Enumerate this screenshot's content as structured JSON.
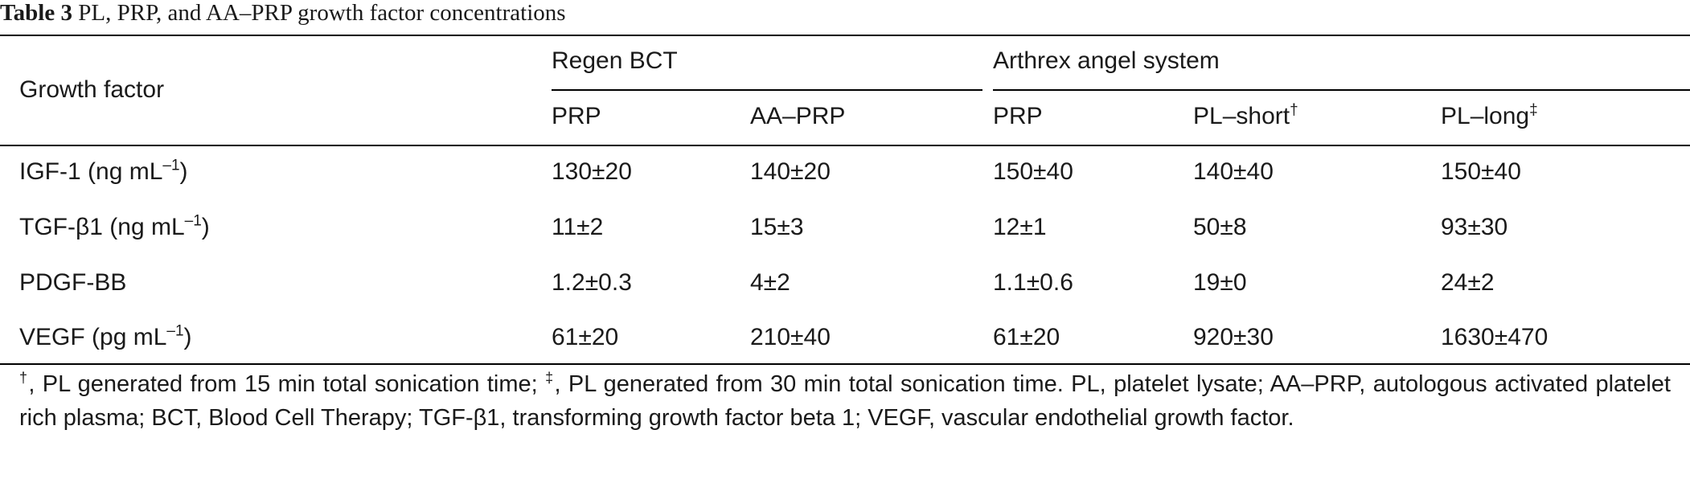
{
  "caption": {
    "label": "Table 3",
    "text": "PL, PRP, and AA–PRP growth factor concentrations"
  },
  "table": {
    "row_header": "Growth factor",
    "groups": [
      {
        "label": "Regen BCT"
      },
      {
        "label": "Arthrex angel system"
      }
    ],
    "columns": [
      {
        "label": "PRP",
        "sup": ""
      },
      {
        "label": "AA–PRP",
        "sup": ""
      },
      {
        "label": "PRP",
        "sup": ""
      },
      {
        "label": "PL–short",
        "sup": "†"
      },
      {
        "label": "PL–long",
        "sup": "‡"
      }
    ],
    "rows": [
      {
        "name": "IGF-1",
        "unit_pre": "(ng mL",
        "unit_sup": "–1",
        "unit_post": ")",
        "values": [
          "130±20",
          "140±20",
          "150±40",
          "140±40",
          "150±40"
        ]
      },
      {
        "name": "TGF-β1",
        "unit_pre": "(ng mL",
        "unit_sup": "–1",
        "unit_post": ")",
        "values": [
          "11±2",
          "15±3",
          "12±1",
          "50±8",
          "93±30"
        ]
      },
      {
        "name": "PDGF-BB",
        "unit_pre": "",
        "unit_sup": "",
        "unit_post": "",
        "values": [
          "1.2±0.3",
          "4±2",
          "1.1±0.6",
          "19±0",
          "24±2"
        ]
      },
      {
        "name": "VEGF",
        "unit_pre": "(pg mL",
        "unit_sup": "–1",
        "unit_post": ")",
        "values": [
          "61±20",
          "210±40",
          "61±20",
          "920±30",
          "1630±470"
        ]
      }
    ]
  },
  "footnote": {
    "dagger": "†",
    "part1": ", PL generated from 15 min total sonication time; ",
    "ddagger": "‡",
    "part2": ", PL generated from 30 min total sonication time. PL, platelet lysate; AA–PRP, autologous activated platelet rich plasma; BCT, Blood Cell Therapy; TGF-β1, transforming growth factor beta 1; VEGF, vascular endothelial growth factor."
  }
}
